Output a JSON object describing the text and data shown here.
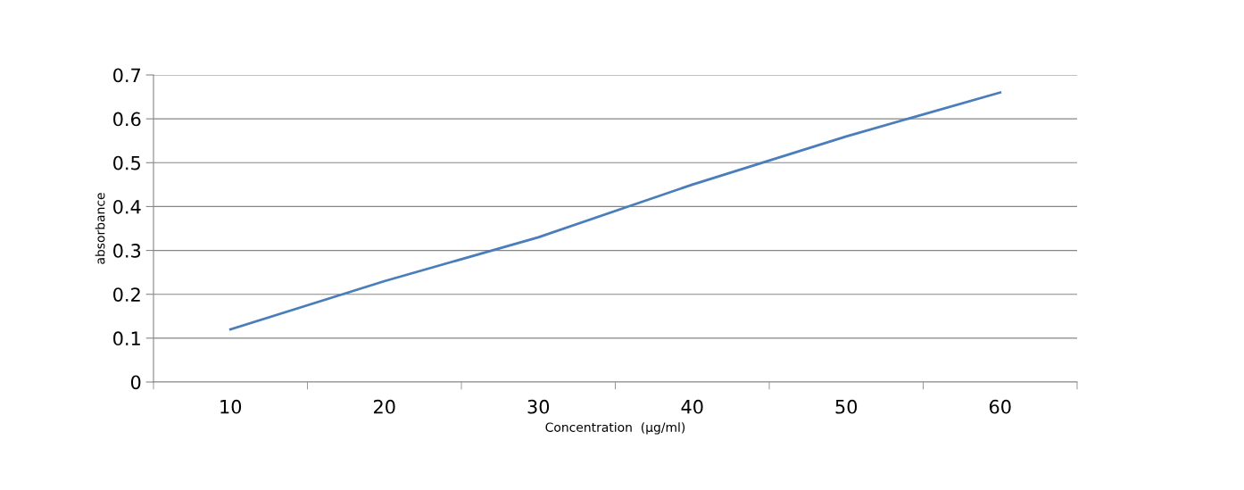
{
  "chart_data": {
    "type": "line",
    "xlabel": "Concentration  (µg/ml)",
    "ylabel": "absorbance",
    "categories": [
      "10",
      "20",
      "30",
      "40",
      "50",
      "60"
    ],
    "series": [
      {
        "color": "#4a7ebb",
        "values": [
          0.12,
          0.23,
          0.33,
          0.45,
          0.56,
          0.66
        ]
      }
    ],
    "ylim": [
      0,
      0.7
    ],
    "yticks": [
      0,
      0.1,
      0.2,
      0.3,
      0.4,
      0.5,
      0.6,
      0.7
    ],
    "grid": "y",
    "legend": false,
    "marker": "none",
    "line_style": "solid"
  }
}
